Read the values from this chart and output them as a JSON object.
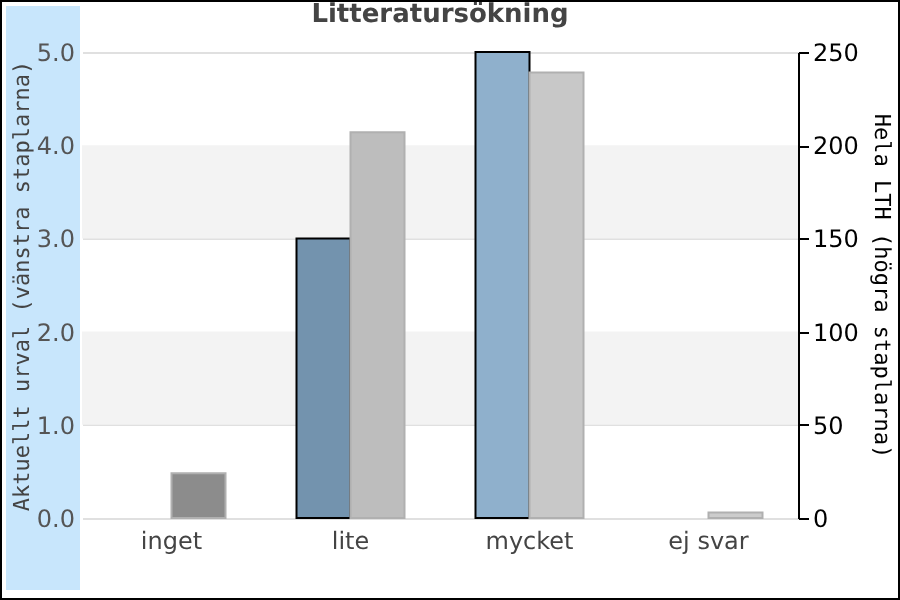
{
  "chart_data": {
    "type": "bar",
    "title": "Litteratursökning",
    "ylabel": "Aktuellt urval (vänstra staplarna)",
    "y2label": "Hela LTH (högra staplarna)",
    "categories": [
      "inget",
      "lite",
      "mycket",
      "ej svar"
    ],
    "series": [
      {
        "colors": [
          "#7393ae",
          "#7393ae",
          "#8fb0cc",
          "#8fb0cc"
        ],
        "values": [
          0,
          3.0,
          5.0,
          0
        ]
      },
      {
        "axis": "y2",
        "colors": [
          "#8c8c8c",
          "#bdbdbd",
          "#c8c8c8",
          "#cccccc"
        ],
        "values": [
          24,
          207,
          239,
          3
        ]
      }
    ],
    "ylim": [
      0,
      5
    ],
    "yticks": [
      {
        "value": 0,
        "label": "0.0"
      },
      {
        "value": 1,
        "label": "1.0"
      },
      {
        "value": 2,
        "label": "2.0"
      },
      {
        "value": 3,
        "label": "3.0"
      },
      {
        "value": 4,
        "label": "4.0"
      },
      {
        "value": 5,
        "label": "5.0"
      }
    ],
    "y2lim": [
      0,
      250
    ],
    "y2ticks": [
      0,
      50,
      100,
      150,
      200,
      250
    ],
    "grid": "y"
  }
}
